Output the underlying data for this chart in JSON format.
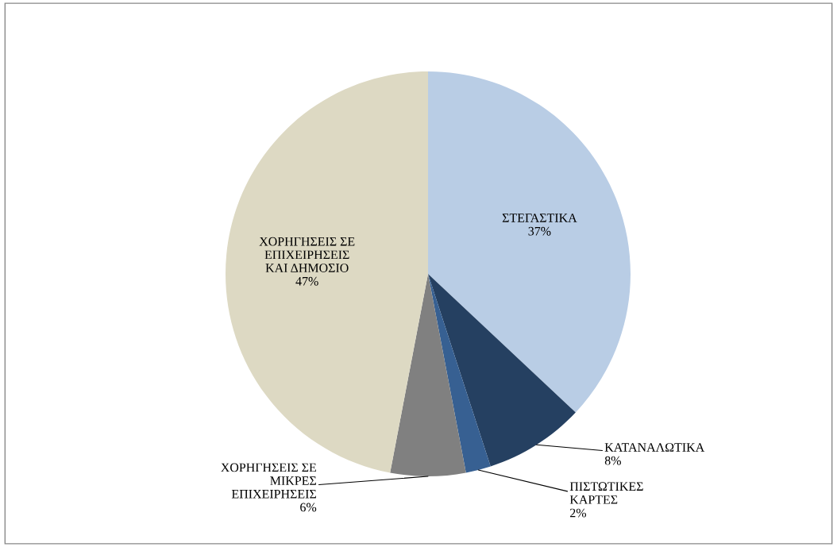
{
  "chart_data": {
    "type": "pie",
    "categories": [
      "ΣΤΕΓΑΣΤΙΚΑ",
      "ΚΑΤΑΝΑΛΩΤΙΚΑ",
      "ΠΙΣΤΩΤΙΚΕΣ\nΚΑΡΤΕΣ",
      "ΧΟΡΗΓΗΣΕΙΣ ΣΕ\nΜΙΚΡΕΣ\nΕΠΙΧΕΙΡΗΣΕΙΣ",
      "ΧΟΡΗΓΗΣΕΙΣ ΣΕ\nΕΠΙΧΕΙΡΗΣΕΙΣ\nΚΑΙ ΔΗΜΟΣΙΟ"
    ],
    "values": [
      37,
      8,
      2,
      6,
      47
    ],
    "value_labels": [
      "37%",
      "8%",
      "2%",
      "6%",
      "47%"
    ],
    "colors": [
      "#b9cde5",
      "#254061",
      "#376092",
      "#808080",
      "#ddd9c3"
    ]
  }
}
